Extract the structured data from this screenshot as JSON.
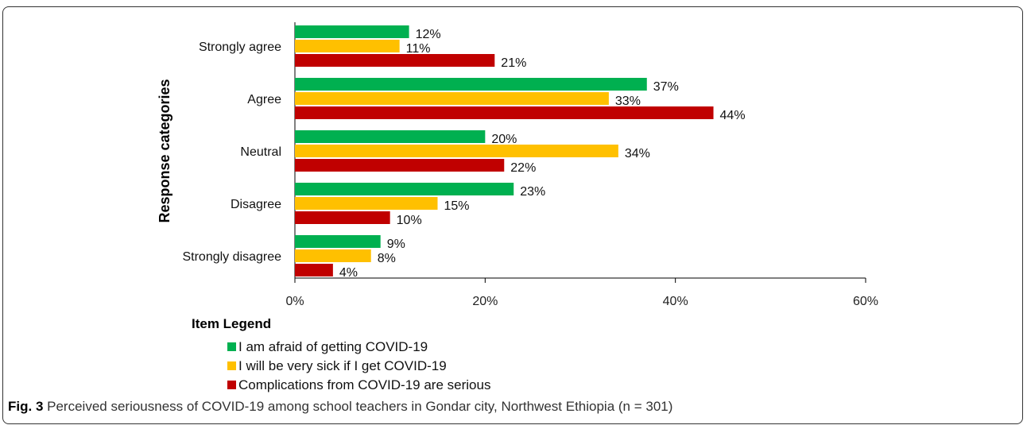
{
  "chart_data": {
    "type": "bar",
    "orientation": "horizontal",
    "categories": [
      "Strongly agree",
      "Agree",
      "Neutral",
      "Disagree",
      "Strongly disagree"
    ],
    "series": [
      {
        "name": "I am afraid of getting COVID-19",
        "color": "#00B050",
        "values": [
          12,
          37,
          20,
          23,
          9
        ]
      },
      {
        "name": "I will be very sick if I get COVID-19",
        "color": "#FFC000",
        "values": [
          11,
          33,
          34,
          15,
          8
        ]
      },
      {
        "name": "Complications from  COVID-19 are serious",
        "color": "#C00000",
        "values": [
          21,
          44,
          22,
          10,
          4
        ]
      }
    ],
    "xlim": [
      0,
      60
    ],
    "xticks": [
      0,
      20,
      40,
      60
    ],
    "tick_format": "%",
    "value_label_suffix": "%",
    "ylabel": "Response categories",
    "xlabel": "",
    "legend_title": "Item Legend",
    "legend_position": "bottom-left",
    "grid": false
  },
  "caption": {
    "label": "Fig. 3",
    "text": "Perceived seriousness of COVID-19 among school teachers in Gondar city, Northwest Ethiopia (n = 301)"
  }
}
